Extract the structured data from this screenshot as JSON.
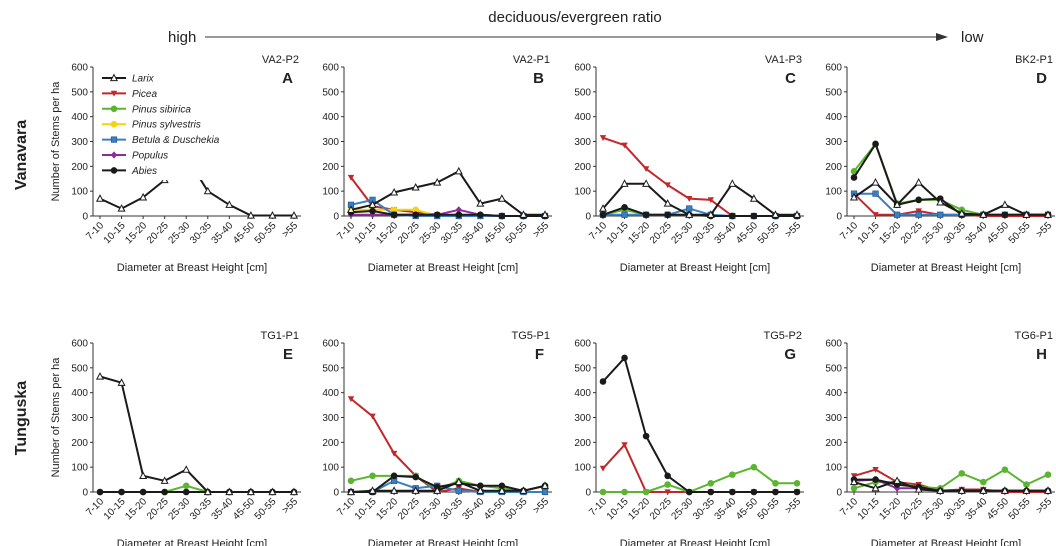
{
  "header": {
    "high_label": "high",
    "ratio_label": "deciduous/evergreen ratio",
    "low_label": "low"
  },
  "rows": [
    "Vanavara",
    "Tunguska"
  ],
  "legend": [
    {
      "name": "Larix",
      "color": "#1a1a1a",
      "marker": "triangle-open"
    },
    {
      "name": "Picea",
      "color": "#c0282c",
      "marker": "triangle-down"
    },
    {
      "name": "Pinus sibirica",
      "color": "#5cb531",
      "marker": "circle"
    },
    {
      "name": "Pinus sylvestris",
      "color": "#f2d413",
      "marker": "circle"
    },
    {
      "name": "Betula & Duschekia",
      "color": "#3a7fc1",
      "marker": "square"
    },
    {
      "name": "Populus",
      "color": "#8e2a9a",
      "marker": "diamond"
    },
    {
      "name": "Abies",
      "color": "#1a1a1a",
      "marker": "circle"
    }
  ],
  "chart_data": [
    {
      "type": "line",
      "panel": "A",
      "title": "VA2-P2",
      "xlabel": "Diameter at Breast Height [cm]",
      "ylabel": "Number of Stems per ha",
      "ylim": [
        0,
        600
      ],
      "yticks": [
        0,
        100,
        200,
        300,
        400,
        500,
        600
      ],
      "categories": [
        "7-10",
        "10-15",
        "15-20",
        "20-25",
        "25-30",
        "30-35",
        "35-40",
        "45-50",
        "50-55",
        ">55"
      ],
      "series": [
        {
          "name": "Larix",
          "values": [
            70,
            30,
            75,
            145,
            240,
            100,
            45,
            2,
            2,
            2
          ]
        }
      ]
    },
    {
      "type": "line",
      "panel": "B",
      "title": "VA2-P1",
      "xlabel": "Diameter at Breast Height [cm]",
      "ylabel": "",
      "ylim": [
        0,
        600
      ],
      "yticks": [
        0,
        100,
        200,
        300,
        400,
        500,
        600
      ],
      "categories": [
        "7-10",
        "10-15",
        "15-20",
        "20-25",
        "25-30",
        "30-35",
        "35-40",
        "45-50",
        "50-55",
        ">55"
      ],
      "series": [
        {
          "name": "Picea",
          "values": [
            155,
            40,
            25,
            15,
            5,
            0,
            0,
            0,
            0,
            0
          ]
        },
        {
          "name": "Pinus sylvestris",
          "values": [
            25,
            25,
            25,
            25,
            0,
            0,
            0,
            0,
            0,
            0
          ]
        },
        {
          "name": "Betula & Duschekia",
          "values": [
            45,
            65,
            5,
            0,
            0,
            0,
            0,
            0,
            0,
            0
          ]
        },
        {
          "name": "Populus",
          "values": [
            5,
            5,
            5,
            5,
            5,
            25,
            5,
            0,
            0,
            0
          ]
        },
        {
          "name": "Abies",
          "values": [
            15,
            20,
            5,
            5,
            5,
            5,
            5,
            0,
            0,
            0
          ]
        },
        {
          "name": "Larix",
          "values": [
            25,
            45,
            95,
            115,
            135,
            180,
            50,
            70,
            5,
            5
          ]
        }
      ]
    },
    {
      "type": "line",
      "panel": "C",
      "title": "VA1-P3",
      "xlabel": "Diameter at Breast Height [cm]",
      "ylabel": "",
      "ylim": [
        0,
        600
      ],
      "yticks": [
        0,
        100,
        200,
        300,
        400,
        500,
        600
      ],
      "categories": [
        "7-10",
        "10-15",
        "15-20",
        "20-25",
        "25-30",
        "30-35",
        "35-40",
        "45-50",
        "50-55",
        ">55"
      ],
      "series": [
        {
          "name": "Picea",
          "values": [
            315,
            285,
            190,
            125,
            70,
            65,
            0,
            0,
            0,
            0
          ]
        },
        {
          "name": "Pinus sibirica",
          "values": [
            5,
            25,
            5,
            5,
            5,
            0,
            0,
            0,
            0,
            0
          ]
        },
        {
          "name": "Betula & Duschekia",
          "values": [
            5,
            5,
            5,
            5,
            30,
            5,
            0,
            0,
            0,
            0
          ]
        },
        {
          "name": "Abies",
          "values": [
            5,
            35,
            5,
            5,
            5,
            0,
            0,
            0,
            0,
            0
          ]
        },
        {
          "name": "Larix",
          "values": [
            30,
            130,
            130,
            50,
            5,
            5,
            130,
            70,
            5,
            5
          ]
        }
      ]
    },
    {
      "type": "line",
      "panel": "D",
      "title": "BK2-P1",
      "xlabel": "Diameter at Breast Height [cm]",
      "ylabel": "",
      "ylim": [
        0,
        600
      ],
      "yticks": [
        0,
        100,
        200,
        300,
        400,
        500,
        600
      ],
      "categories": [
        "7-10",
        "10-15",
        "15-20",
        "20-25",
        "25-30",
        "30-35",
        "35-40",
        "45-50",
        "50-55",
        ">55"
      ],
      "series": [
        {
          "name": "Picea",
          "values": [
            90,
            5,
            5,
            20,
            5,
            5,
            0,
            0,
            0,
            0
          ]
        },
        {
          "name": "Pinus sibirica",
          "values": [
            180,
            290,
            50,
            65,
            65,
            25,
            5,
            5,
            5,
            5
          ]
        },
        {
          "name": "Betula & Duschekia",
          "values": [
            90,
            90,
            5,
            5,
            5,
            5,
            5,
            5,
            5,
            5
          ]
        },
        {
          "name": "Abies",
          "values": [
            155,
            290,
            45,
            65,
            70,
            5,
            5,
            5,
            5,
            5
          ]
        },
        {
          "name": "Larix",
          "values": [
            75,
            135,
            45,
            135,
            55,
            10,
            5,
            45,
            5,
            5
          ]
        }
      ]
    },
    {
      "type": "line",
      "panel": "E",
      "title": "TG1-P1",
      "xlabel": "Diameter at Breast Height [cm]",
      "ylabel": "Number of Stems per ha",
      "ylim": [
        0,
        600
      ],
      "yticks": [
        0,
        100,
        200,
        300,
        400,
        500,
        600
      ],
      "categories": [
        "7-10",
        "10-15",
        "15-20",
        "20-25",
        "25-30",
        "30-35",
        "35-40",
        "45-50",
        "50-55",
        ">55"
      ],
      "series": [
        {
          "name": "Pinus sibirica",
          "values": [
            0,
            0,
            0,
            0,
            25,
            0,
            0,
            0,
            0,
            0
          ]
        },
        {
          "name": "Abies",
          "values": [
            0,
            0,
            0,
            0,
            0,
            0,
            0,
            0,
            0,
            0
          ]
        },
        {
          "name": "Larix",
          "values": [
            465,
            440,
            65,
            45,
            90,
            0,
            0,
            0,
            0,
            0
          ]
        }
      ]
    },
    {
      "type": "line",
      "panel": "F",
      "title": "TG5-P1",
      "xlabel": "Diameter at Breast Height [cm]",
      "ylabel": "",
      "ylim": [
        0,
        600
      ],
      "yticks": [
        0,
        100,
        200,
        300,
        400,
        500,
        600
      ],
      "categories": [
        "7-10",
        "10-15",
        "15-20",
        "20-25",
        "25-30",
        "30-35",
        "35-40",
        "45-50",
        "50-55",
        ">55"
      ],
      "series": [
        {
          "name": "Picea",
          "values": [
            375,
            305,
            155,
            65,
            0,
            15,
            0,
            0,
            0,
            0
          ]
        },
        {
          "name": "Pinus sibirica",
          "values": [
            45,
            65,
            65,
            65,
            10,
            45,
            25,
            15,
            5,
            25
          ]
        },
        {
          "name": "Betula & Duschekia",
          "values": [
            0,
            0,
            45,
            15,
            25,
            5,
            0,
            0,
            0,
            0
          ]
        },
        {
          "name": "Abies",
          "values": [
            0,
            0,
            65,
            60,
            20,
            35,
            25,
            25,
            5,
            25
          ]
        },
        {
          "name": "Larix",
          "values": [
            0,
            5,
            5,
            5,
            5,
            40,
            5,
            5,
            5,
            25
          ]
        }
      ]
    },
    {
      "type": "line",
      "panel": "G",
      "title": "TG5-P2",
      "xlabel": "Diameter at Breast Height [cm]",
      "ylabel": "",
      "ylim": [
        0,
        600
      ],
      "yticks": [
        0,
        100,
        200,
        300,
        400,
        500,
        600
      ],
      "categories": [
        "7-10",
        "10-15",
        "15-20",
        "20-25",
        "25-30",
        "30-35",
        "35-40",
        "45-50",
        "50-55",
        ">55"
      ],
      "series": [
        {
          "name": "Picea",
          "values": [
            95,
            190,
            0,
            0,
            0,
            0,
            0,
            0,
            0,
            0
          ]
        },
        {
          "name": "Pinus sibirica",
          "values": [
            0,
            0,
            0,
            30,
            0,
            35,
            70,
            100,
            35,
            35
          ]
        },
        {
          "name": "Abies",
          "values": [
            445,
            540,
            225,
            65,
            0,
            0,
            0,
            0,
            0,
            0
          ]
        }
      ]
    },
    {
      "type": "line",
      "panel": "H",
      "title": "TG6-P1",
      "xlabel": "Diameter at Breast Height [cm]",
      "ylabel": "",
      "ylim": [
        0,
        600
      ],
      "yticks": [
        0,
        100,
        200,
        300,
        400,
        500,
        600
      ],
      "categories": [
        "7-10",
        "10-15",
        "15-20",
        "20-25",
        "25-30",
        "30-35",
        "35-40",
        "45-50",
        "50-55",
        ">55"
      ],
      "series": [
        {
          "name": "Picea",
          "values": [
            65,
            90,
            40,
            30,
            5,
            10,
            10,
            0,
            0,
            0
          ]
        },
        {
          "name": "Pinus sibirica",
          "values": [
            15,
            40,
            40,
            20,
            15,
            75,
            40,
            90,
            30,
            70
          ]
        },
        {
          "name": "Populus",
          "values": [
            45,
            50,
            15,
            15,
            5,
            5,
            5,
            5,
            5,
            5
          ]
        },
        {
          "name": "Abies",
          "values": [
            50,
            50,
            30,
            20,
            5,
            5,
            5,
            5,
            5,
            5
          ]
        },
        {
          "name": "Larix",
          "values": [
            40,
            15,
            45,
            10,
            5,
            5,
            5,
            5,
            5,
            5
          ]
        }
      ]
    }
  ]
}
